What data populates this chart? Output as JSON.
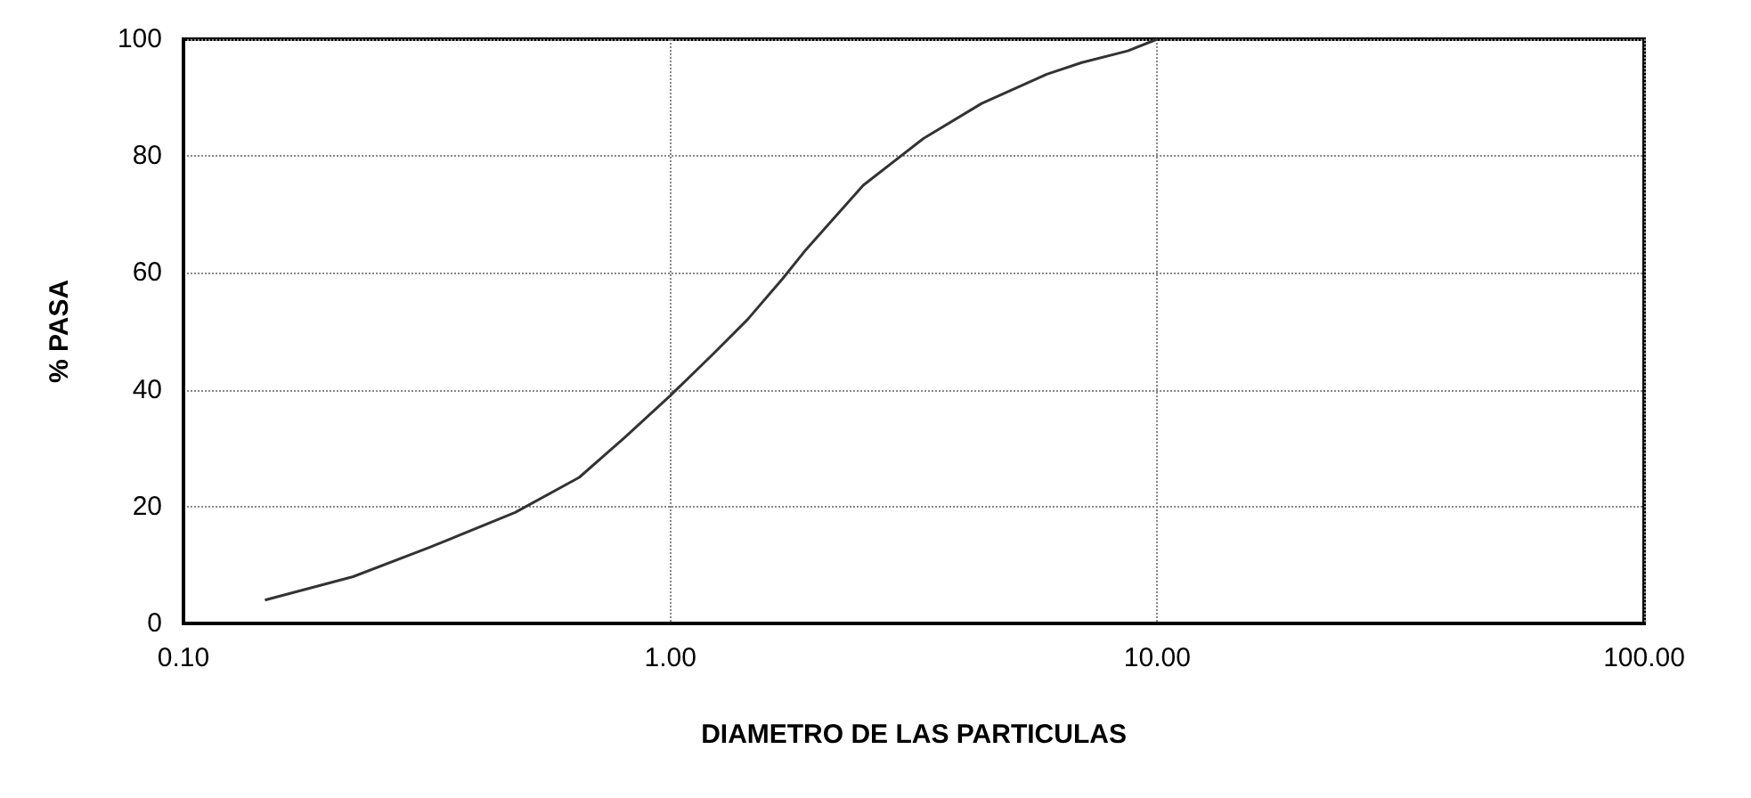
{
  "chart_data": {
    "type": "line",
    "xlabel": "DIAMETRO DE LAS PARTICULAS",
    "ylabel": "% PASA",
    "log": "x",
    "x": [
      0.147,
      0.223,
      0.32,
      0.48,
      0.65,
      0.81,
      1.0,
      1.22,
      1.44,
      1.7,
      1.9,
      2.49,
      3.31,
      4.36,
      5.93,
      7.0,
      8.7,
      10
    ],
    "series": [
      {
        "color": "#333333",
        "values": [
          4,
          8,
          13,
          19,
          25,
          32,
          39,
          46,
          52,
          59,
          64,
          75,
          83,
          89,
          94,
          96,
          98,
          100
        ]
      }
    ],
    "xlim": [
      0.1,
      100
    ],
    "xticks": [
      {
        "value": 0.1,
        "label": "0.10"
      },
      {
        "value": 1,
        "label": "1.00"
      },
      {
        "value": 10,
        "label": "10.00"
      },
      {
        "value": 100,
        "label": "100.00"
      }
    ],
    "ylim": [
      0,
      100
    ],
    "yticks": [
      0,
      20,
      40,
      60,
      80,
      100
    ],
    "grid": true,
    "marker": "none",
    "line_style": "solid"
  }
}
